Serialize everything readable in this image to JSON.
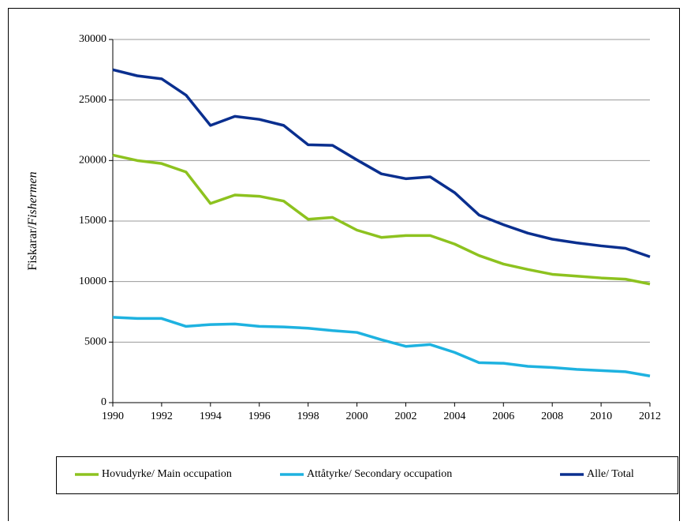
{
  "chart_data": {
    "type": "line",
    "ylabel": "Fiskarar/",
    "ylabel_italic": "Fishermen",
    "x": [
      1990,
      1991,
      1992,
      1993,
      1994,
      1995,
      1996,
      1997,
      1998,
      1999,
      2000,
      2001,
      2002,
      2003,
      2004,
      2005,
      2006,
      2007,
      2008,
      2009,
      2010,
      2011,
      2012
    ],
    "series": [
      {
        "name": "Hovudyrke/ Main occupation",
        "color": "#8dc21f",
        "values": [
          20450,
          20000,
          19750,
          19050,
          16450,
          17150,
          17050,
          16650,
          15150,
          15300,
          14250,
          13650,
          13800,
          13800,
          13100,
          12150,
          11450,
          11000,
          10600,
          10450,
          10300,
          10200,
          9800
        ]
      },
      {
        "name": "Attåtyrke/ Secondary occupation",
        "color": "#1eb2e0",
        "values": [
          7050,
          6950,
          6950,
          6300,
          6450,
          6500,
          6300,
          6250,
          6150,
          5950,
          5800,
          5200,
          4650,
          4800,
          4150,
          3300,
          3250,
          3000,
          2900,
          2750,
          2650,
          2550,
          2200
        ]
      },
      {
        "name": "Alle/ Total",
        "color": "#0a2f8f",
        "values": [
          27500,
          27000,
          26750,
          25400,
          22900,
          23650,
          23400,
          22900,
          21300,
          21250,
          20050,
          18900,
          18500,
          18650,
          17350,
          15500,
          14700,
          14000,
          13500,
          13200,
          12950,
          12750,
          12050
        ]
      }
    ],
    "xlim": [
      1990,
      2012
    ],
    "xticks": [
      1990,
      1992,
      1994,
      1996,
      1998,
      2000,
      2002,
      2004,
      2006,
      2008,
      2010,
      2012
    ],
    "ylim": [
      0,
      30000
    ],
    "yticks": [
      0,
      5000,
      10000,
      15000,
      20000,
      25000,
      30000
    ],
    "grid": true,
    "legend": "bottom"
  }
}
